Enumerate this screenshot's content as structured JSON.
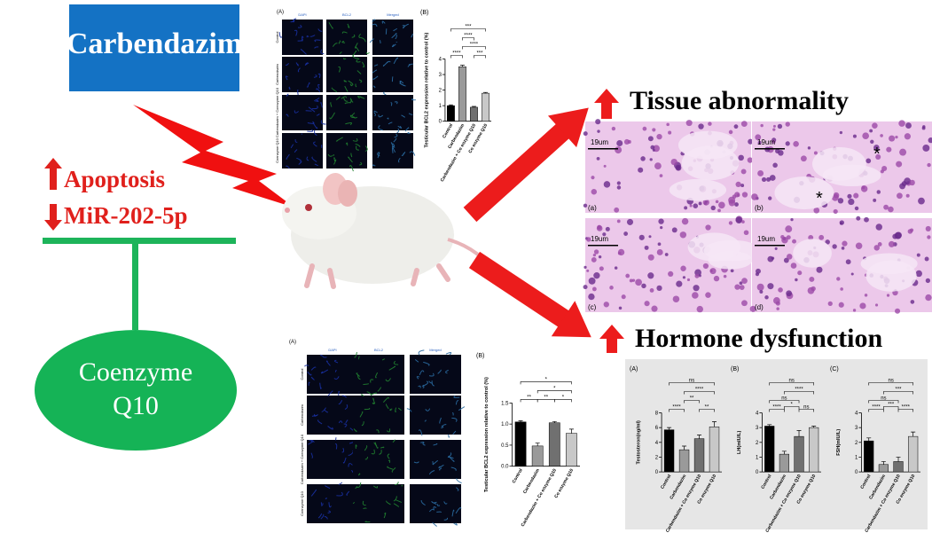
{
  "title_box": "Carbendazim",
  "effects": {
    "up": "Apoptosis",
    "down": "MiR-202-5p"
  },
  "treatment": {
    "line1": "Coenzyme",
    "line2": "Q10"
  },
  "outcomes": [
    "Tissue abnormality",
    "Hormone dysfunction"
  ],
  "micrographs": [
    {
      "panel": "(A)",
      "columns": [
        "DAPI",
        "BCL2",
        "Merged"
      ],
      "rows": [
        "Control",
        "Carbendazim",
        "Carbendazim + Coenzyme Q10",
        "Coenzyme Q10"
      ]
    },
    {
      "panel": "(A)",
      "columns": [
        "DAPI",
        "BCL2",
        "Merged"
      ],
      "rows": [
        "Control",
        "Carbendazim",
        "Carbendazim + Coenzyme Q10",
        "Coenzyme Q10"
      ]
    }
  ],
  "histology": {
    "panels": [
      "(a)",
      "(b)",
      "(c)",
      "(d)"
    ],
    "scale": "19um",
    "marker": "*"
  },
  "chart_data": [
    {
      "type": "bar",
      "panel": "(B)",
      "ylabel": "Testicular BCL2 expression relative to control (%)",
      "categories": [
        "Control",
        "Carbendazim",
        "Carbendazim + Co enzyme Q10",
        "Co enzyme Q10"
      ],
      "values": [
        1,
        3.5,
        0.9,
        1.8
      ],
      "errors": [
        0.05,
        0.1,
        0.05,
        0.05
      ],
      "colors": [
        "#000000",
        "#9a9a9a",
        "#707070",
        "#c8c8c8"
      ],
      "ylim": [
        0,
        4
      ],
      "yticks": [
        0,
        1,
        2,
        3,
        4
      ],
      "annotations": [
        "***",
        "****",
        "****",
        "****",
        "***"
      ]
    },
    {
      "type": "bar",
      "panel": "(B)",
      "ylabel": "Testicular BCL2 expression relative to control (%)",
      "categories": [
        "Control",
        "Carbendazim",
        "Carbendazim + Co enzyme Q10",
        "Co enzyme Q10"
      ],
      "values": [
        1.05,
        0.48,
        1.03,
        0.78
      ],
      "errors": [
        0.03,
        0.07,
        0.03,
        0.1
      ],
      "colors": [
        "#000000",
        "#9a9a9a",
        "#707070",
        "#c8c8c8"
      ],
      "ylim": [
        0,
        1.5
      ],
      "yticks": [
        {
          "value": 0,
          "label": "0.0"
        },
        {
          "value": 0.5,
          "label": "0.5"
        },
        {
          "value": 1,
          "label": "1.0"
        },
        {
          "value": 1.5,
          "label": "1.5"
        }
      ],
      "annotations": [
        "*",
        "*",
        "**",
        "**",
        "*"
      ]
    },
    {
      "type": "bar",
      "panel": "(A)",
      "ylabel": "Testosteron(ng/ml)",
      "categories": [
        "Control",
        "Carbendazim",
        "Carbendazim + Co enzyme Q10",
        "Co enzyme Q10"
      ],
      "values": [
        5.7,
        3.0,
        4.5,
        6.1
      ],
      "errors": [
        0.3,
        0.5,
        0.5,
        0.7
      ],
      "colors": [
        "#000000",
        "#9a9a9a",
        "#707070",
        "#c8c8c8"
      ],
      "ylim": [
        0,
        8
      ],
      "yticks": [
        0,
        2,
        4,
        6,
        8
      ],
      "annotations": [
        "ns",
        "****",
        "**",
        "****",
        "**"
      ]
    },
    {
      "type": "bar",
      "panel": "(B)",
      "ylabel": "LH(mIU/L)",
      "categories": [
        "Control",
        "Carbendazim",
        "Carbendazim + Co enzyme Q10",
        "Co enzyme Q10"
      ],
      "values": [
        3.1,
        1.2,
        2.4,
        3.0
      ],
      "errors": [
        0.1,
        0.2,
        0.4,
        0.1
      ],
      "colors": [
        "#000000",
        "#9a9a9a",
        "#707070",
        "#c8c8c8"
      ],
      "ylim": [
        0,
        4
      ],
      "yticks": [
        0,
        1,
        2,
        3,
        4
      ],
      "annotations": [
        "ns",
        "****",
        "ns",
        "*",
        "****",
        "ns"
      ]
    },
    {
      "type": "bar",
      "panel": "(C)",
      "ylabel": "FSH(mIU/L)",
      "categories": [
        "Control",
        "Carbendazim",
        "Carbendazim + Co enzyme Q10",
        "Co enzyme Q10"
      ],
      "values": [
        2.1,
        0.5,
        0.7,
        2.4
      ],
      "errors": [
        0.2,
        0.2,
        0.3,
        0.3
      ],
      "colors": [
        "#000000",
        "#9a9a9a",
        "#707070",
        "#c8c8c8"
      ],
      "ylim": [
        0,
        4
      ],
      "yticks": [
        0,
        1,
        2,
        3,
        4
      ],
      "annotations": [
        "ns",
        "***",
        "ns",
        "***",
        "****",
        "****"
      ]
    }
  ]
}
